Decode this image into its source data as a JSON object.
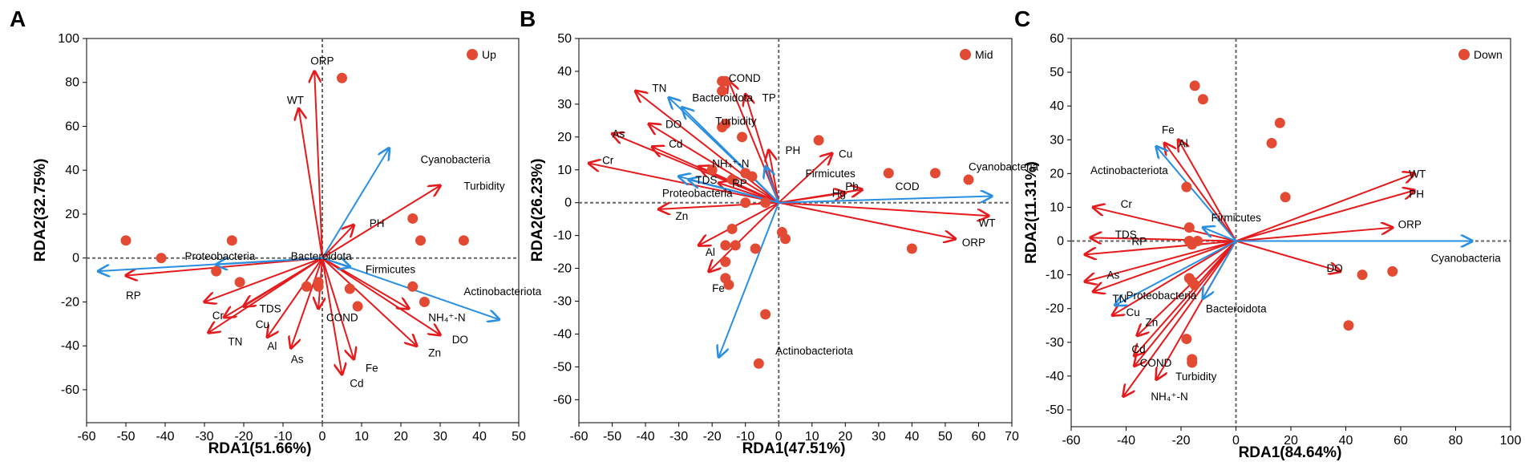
{
  "colors": {
    "env": "#e41a1c",
    "taxa": "#2a8fe0",
    "point": "#e34a33",
    "zero": "#666666"
  },
  "chart_data": [
    {
      "type": "scatter",
      "panel": "A",
      "legend": "Up",
      "xlabel": "RDA1(51.66%)",
      "ylabel": "RDA2(32.75%)",
      "xlim": [
        -60,
        50
      ],
      "ylim": [
        -75,
        100
      ],
      "xticks": [
        -60,
        -50,
        -40,
        -30,
        -20,
        -10,
        0,
        10,
        20,
        30,
        40,
        50
      ],
      "yticks": [
        -60,
        -40,
        -20,
        0,
        20,
        40,
        60,
        80,
        100
      ],
      "points": [
        [
          5,
          82
        ],
        [
          -50,
          8
        ],
        [
          -41,
          0
        ],
        [
          -23,
          8
        ],
        [
          -27,
          -6
        ],
        [
          -21,
          -11
        ],
        [
          -4,
          -13
        ],
        [
          -1,
          -11
        ],
        [
          -1,
          -13
        ],
        [
          7,
          -14
        ],
        [
          9,
          -22
        ],
        [
          23,
          18
        ],
        [
          25,
          8
        ],
        [
          36,
          8
        ],
        [
          23,
          -13
        ],
        [
          26,
          -20
        ]
      ],
      "env_vectors": [
        {
          "name": "ORP",
          "x": -2,
          "y": 85,
          "lx": -3,
          "ly": 90
        },
        {
          "name": "WT",
          "x": -6,
          "y": 68,
          "lx": -9,
          "ly": 72
        },
        {
          "name": "Turbidity",
          "x": 30,
          "y": 33,
          "lx": 36,
          "ly": 33
        },
        {
          "name": "PH",
          "x": 8,
          "y": 15,
          "lx": 12,
          "ly": 16
        },
        {
          "name": "RP",
          "x": -50,
          "y": -8,
          "lx": -50,
          "ly": -17
        },
        {
          "name": "NH₄⁺-N",
          "x": 22,
          "y": -23,
          "lx": 27,
          "ly": -27
        },
        {
          "name": "DO",
          "x": 30,
          "y": -35,
          "lx": 33,
          "ly": -37
        },
        {
          "name": "Zn",
          "x": 24,
          "y": -40,
          "lx": 27,
          "ly": -43
        },
        {
          "name": "Fe",
          "x": 8,
          "y": -46,
          "lx": 11,
          "ly": -50
        },
        {
          "name": "Cd",
          "x": 5,
          "y": -53,
          "lx": 7,
          "ly": -57
        },
        {
          "name": "COND",
          "x": -1,
          "y": -23,
          "lx": 1,
          "ly": -27
        },
        {
          "name": "As",
          "x": -8,
          "y": -41,
          "lx": -8,
          "ly": -46
        },
        {
          "name": "Al",
          "x": -14,
          "y": -36,
          "lx": -14,
          "ly": -40
        },
        {
          "name": "TN",
          "x": -29,
          "y": -34,
          "lx": -24,
          "ly": -38
        },
        {
          "name": "Cu",
          "x": -25,
          "y": -27,
          "lx": -17,
          "ly": -30
        },
        {
          "name": "Cr",
          "x": -30,
          "y": -20,
          "lx": -28,
          "ly": -26
        },
        {
          "name": "TDS",
          "x": -20,
          "y": -22,
          "lx": -16,
          "ly": -23
        }
      ],
      "taxa_vectors": [
        {
          "name": "Cyanobacteria",
          "x": 17,
          "y": 50,
          "lx": 25,
          "ly": 45
        },
        {
          "name": "Proteobacteria",
          "x": -57,
          "y": -6,
          "lx": -35,
          "ly": 1
        },
        {
          "name": "Bacteroidota",
          "x": -27,
          "y": -3,
          "lx": -8,
          "ly": 1
        },
        {
          "name": "Firmicutes",
          "x": 7,
          "y": -4,
          "lx": 11,
          "ly": -5
        },
        {
          "name": "Actinobacteriota",
          "x": 45,
          "y": -28,
          "lx": 36,
          "ly": -15
        }
      ]
    },
    {
      "type": "scatter",
      "panel": "B",
      "legend": "Mid",
      "xlabel": "RDA1(47.51%)",
      "ylabel": "RDA2(26.23%)",
      "xlim": [
        -60,
        70
      ],
      "ylim": [
        -67,
        50
      ],
      "xticks": [
        -60,
        -50,
        -40,
        -30,
        -20,
        -10,
        0,
        10,
        20,
        30,
        40,
        50,
        60,
        70
      ],
      "yticks": [
        -60,
        -50,
        -40,
        -30,
        -20,
        -10,
        0,
        10,
        20,
        30,
        40,
        50
      ],
      "points": [
        [
          -17,
          37
        ],
        [
          -16,
          37
        ],
        [
          -17,
          34
        ],
        [
          -16,
          24
        ],
        [
          -17,
          23
        ],
        [
          -11,
          20
        ],
        [
          -20,
          10
        ],
        [
          -14,
          7
        ],
        [
          -10,
          9
        ],
        [
          -8,
          8
        ],
        [
          -10,
          0
        ],
        [
          -4,
          0
        ],
        [
          -14,
          -8
        ],
        [
          -16,
          -13
        ],
        [
          -13,
          -13
        ],
        [
          -7,
          -14
        ],
        [
          -16,
          -18
        ],
        [
          -16,
          -23
        ],
        [
          -15,
          -25
        ],
        [
          1,
          -9
        ],
        [
          2,
          -11
        ],
        [
          12,
          19
        ],
        [
          40,
          -14
        ],
        [
          -4,
          -34
        ],
        [
          -6,
          -49
        ],
        [
          33,
          9
        ],
        [
          47,
          9
        ],
        [
          57,
          7
        ]
      ],
      "env_vectors": [
        {
          "name": "TP",
          "x": -10,
          "y": 33,
          "lx": -5,
          "ly": 32
        },
        {
          "name": "COND",
          "x": -15,
          "y": 37,
          "lx": -15,
          "ly": 38
        },
        {
          "name": "TN",
          "x": -43,
          "y": 34,
          "lx": -38,
          "ly": 35
        },
        {
          "name": "DO",
          "x": -39,
          "y": 24,
          "lx": -34,
          "ly": 24
        },
        {
          "name": "As",
          "x": -50,
          "y": 21,
          "lx": -50,
          "ly": 21
        },
        {
          "name": "Cd",
          "x": -38,
          "y": 17,
          "lx": -33,
          "ly": 18
        },
        {
          "name": "Cr",
          "x": -57,
          "y": 12,
          "lx": -53,
          "ly": 13
        },
        {
          "name": "NH₄⁺-N",
          "x": -24,
          "y": 11,
          "lx": -20,
          "ly": 12
        },
        {
          "name": "RP",
          "x": -18,
          "y": 6,
          "lx": -14,
          "ly": 6
        },
        {
          "name": "Zn",
          "x": -36,
          "y": -2,
          "lx": -31,
          "ly": -4
        },
        {
          "name": "PH",
          "x": -3,
          "y": 16,
          "lx": 2,
          "ly": 16
        },
        {
          "name": "Al",
          "x": -24,
          "y": -13,
          "lx": -22,
          "ly": -15
        },
        {
          "name": "Fe",
          "x": -21,
          "y": -21,
          "lx": -20,
          "ly": -26
        },
        {
          "name": "Hg",
          "x": 20,
          "y": 3,
          "lx": 16,
          "ly": 3
        },
        {
          "name": "Pb",
          "x": 25,
          "y": 4,
          "lx": 20,
          "ly": 5
        },
        {
          "name": "COD",
          "x": 25,
          "y": 4,
          "lx": 35,
          "ly": 5
        },
        {
          "name": "Cu",
          "x": 16,
          "y": 15,
          "lx": 18,
          "ly": 15
        },
        {
          "name": "WT",
          "x": 63,
          "y": -4,
          "lx": 60,
          "ly": -6
        },
        {
          "name": "ORP",
          "x": 53,
          "y": -11,
          "lx": 55,
          "ly": -12
        }
      ],
      "taxa_vectors": [
        {
          "name": "Bacteroidota",
          "x": -33,
          "y": 32,
          "lx": -26,
          "ly": 32
        },
        {
          "name": "Turbidity",
          "x": -29,
          "y": 29,
          "lx": -19,
          "ly": 25
        },
        {
          "name": "Proteobacteria",
          "x": -27,
          "y": 7,
          "lx": -35,
          "ly": 3
        },
        {
          "name": "TDS",
          "x": -30,
          "y": 8,
          "lx": -25,
          "ly": 7
        },
        {
          "name": "Firmicutes",
          "x": -4,
          "y": 11,
          "lx": 8,
          "ly": 9
        },
        {
          "name": "Cyanobacteria",
          "x": 64,
          "y": 2,
          "lx": 57,
          "ly": 11
        },
        {
          "name": "Actinobacteriota",
          "x": -18,
          "y": -47,
          "lx": -1,
          "ly": -45
        }
      ]
    },
    {
      "type": "scatter",
      "panel": "C",
      "legend": "Down",
      "xlabel": "RDA1(84.64%)",
      "ylabel": "RDA2(11.31%)",
      "xlim": [
        -60,
        100
      ],
      "ylim": [
        -55,
        60
      ],
      "xticks": [
        -60,
        -40,
        -20,
        0,
        20,
        40,
        60,
        80,
        100
      ],
      "yticks": [
        -50,
        -40,
        -30,
        -20,
        -10,
        0,
        10,
        20,
        30,
        40,
        50,
        60
      ],
      "points": [
        [
          -15,
          46
        ],
        [
          -12,
          42
        ],
        [
          16,
          35
        ],
        [
          13,
          29
        ],
        [
          18,
          13
        ],
        [
          -18,
          16
        ],
        [
          -17,
          4
        ],
        [
          -17,
          0
        ],
        [
          -16,
          -1
        ],
        [
          -14,
          0
        ],
        [
          -17,
          -11
        ],
        [
          -16,
          -12
        ],
        [
          -15,
          -13
        ],
        [
          -18,
          -29
        ],
        [
          -16,
          -35
        ],
        [
          -16,
          -36
        ],
        [
          41,
          -25
        ],
        [
          46,
          -10
        ],
        [
          57,
          -9
        ]
      ],
      "env_vectors": [
        {
          "name": "Fe",
          "x": -26,
          "y": 29,
          "lx": -27,
          "ly": 33
        },
        {
          "name": "Al",
          "x": -21,
          "y": 30,
          "lx": -21,
          "ly": 29
        },
        {
          "name": "Cr",
          "x": -52,
          "y": 10,
          "lx": -42,
          "ly": 11
        },
        {
          "name": "TDS",
          "x": -53,
          "y": 1,
          "lx": -44,
          "ly": 2
        },
        {
          "name": "RP",
          "x": -55,
          "y": -4,
          "lx": -38,
          "ly": 0
        },
        {
          "name": "As",
          "x": -55,
          "y": -12,
          "lx": -47,
          "ly": -10
        },
        {
          "name": "TN",
          "x": -52,
          "y": -15,
          "lx": -45,
          "ly": -17
        },
        {
          "name": "Cu",
          "x": -45,
          "y": -22,
          "lx": -40,
          "ly": -21
        },
        {
          "name": "Zn",
          "x": -36,
          "y": -28,
          "lx": -33,
          "ly": -24
        },
        {
          "name": "Cd",
          "x": -37,
          "y": -34,
          "lx": -38,
          "ly": -32
        },
        {
          "name": "COND",
          "x": -37,
          "y": -37,
          "lx": -35,
          "ly": -36
        },
        {
          "name": "Turbidity",
          "x": -29,
          "y": -41,
          "lx": -22,
          "ly": -40
        },
        {
          "name": "NH₄⁺-N",
          "x": -41,
          "y": -46,
          "lx": -31,
          "ly": -46
        },
        {
          "name": "WT",
          "x": 65,
          "y": 20,
          "lx": 63,
          "ly": 20
        },
        {
          "name": "PH",
          "x": 65,
          "y": 15,
          "lx": 63,
          "ly": 14
        },
        {
          "name": "ORP",
          "x": 57,
          "y": 4,
          "lx": 59,
          "ly": 5
        },
        {
          "name": "DO",
          "x": 38,
          "y": -9,
          "lx": 33,
          "ly": -8
        }
      ],
      "taxa_vectors": [
        {
          "name": "Actinobacteriota",
          "x": -29,
          "y": 28,
          "lx": -53,
          "ly": 21
        },
        {
          "name": "Firmicutes",
          "x": -12,
          "y": 4,
          "lx": -9,
          "ly": 7
        },
        {
          "name": "Proteobacteria",
          "x": -44,
          "y": -19,
          "lx": -40,
          "ly": -16
        },
        {
          "name": "Bacteroidota",
          "x": -12,
          "y": -17,
          "lx": -11,
          "ly": -20
        },
        {
          "name": "Cyanobacteria",
          "x": 86,
          "y": 0,
          "lx": 71,
          "ly": -5
        }
      ]
    }
  ]
}
